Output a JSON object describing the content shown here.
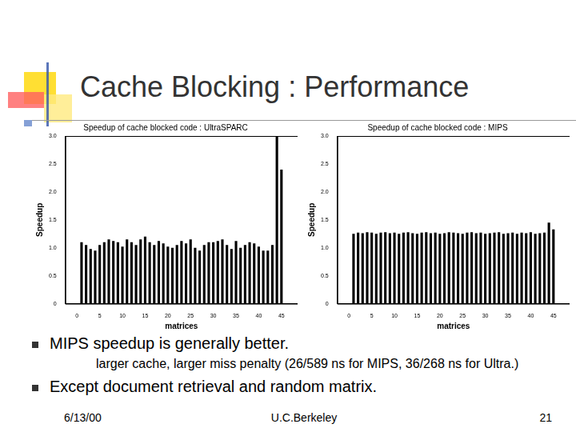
{
  "slide": {
    "title": "Cache Blocking : Performance",
    "bullets": [
      {
        "text": "MIPS speedup is generally better.",
        "sub": [
          "larger cache, larger miss penalty (26/589 ns for MIPS, 36/268 ns for Ultra.)"
        ]
      },
      {
        "text": "Except document retrieval and random matrix.",
        "sub": []
      }
    ],
    "footer": {
      "date": "6/13/00",
      "center": "U.C.Berkeley",
      "page": "21"
    }
  },
  "chart_data": [
    {
      "type": "bar",
      "title": "Speedup of cache blocked code : UltraSPARC",
      "x_label": "matrices",
      "y_label": "Speedup",
      "x": [
        1,
        2,
        3,
        4,
        5,
        6,
        7,
        8,
        9,
        10,
        11,
        12,
        13,
        14,
        15,
        16,
        17,
        18,
        19,
        20,
        21,
        22,
        23,
        24,
        25,
        26,
        27,
        28,
        29,
        30,
        31,
        32,
        33,
        34,
        35,
        36,
        37,
        38,
        39,
        40,
        41,
        42,
        43,
        44,
        45
      ],
      "values": [
        1.1,
        1.05,
        0.98,
        0.95,
        1.05,
        1.1,
        1.15,
        1.12,
        1.1,
        1.02,
        1.15,
        1.1,
        1.05,
        1.15,
        1.2,
        1.1,
        1.05,
        1.12,
        1.08,
        1.02,
        1.0,
        1.05,
        1.12,
        1.08,
        1.15,
        1.0,
        0.95,
        1.05,
        1.1,
        1.1,
        1.12,
        1.15,
        1.05,
        0.98,
        1.12,
        1.0,
        1.05,
        1.1,
        1.08,
        1.02,
        0.95,
        0.95,
        1.05,
        3.0,
        2.4
      ],
      "color": "#000000",
      "xlim": [
        0,
        46
      ],
      "xticks": [
        0,
        5,
        10,
        15,
        20,
        25,
        30,
        35,
        40,
        45
      ],
      "ylim": [
        0,
        3
      ],
      "yticks": [
        0,
        0.5,
        1,
        1.5,
        2,
        2.5,
        3
      ],
      "grid": false
    },
    {
      "type": "bar",
      "title": "Speedup of cache blocked code : MIPS",
      "x_label": "matrices",
      "y_label": "Speedup",
      "x": [
        1,
        2,
        3,
        4,
        5,
        6,
        7,
        8,
        9,
        10,
        11,
        12,
        13,
        14,
        15,
        16,
        17,
        18,
        19,
        20,
        21,
        22,
        23,
        24,
        25,
        26,
        27,
        28,
        29,
        30,
        31,
        32,
        33,
        34,
        35,
        36,
        37,
        38,
        39,
        40,
        41,
        42,
        43,
        44,
        45
      ],
      "values": [
        1.25,
        1.27,
        1.26,
        1.28,
        1.27,
        1.25,
        1.27,
        1.28,
        1.26,
        1.27,
        1.25,
        1.27,
        1.28,
        1.26,
        1.25,
        1.27,
        1.28,
        1.26,
        1.27,
        1.25,
        1.26,
        1.28,
        1.27,
        1.26,
        1.25,
        1.27,
        1.28,
        1.26,
        1.27,
        1.25,
        1.26,
        1.27,
        1.28,
        1.25,
        1.26,
        1.27,
        1.25,
        1.27,
        1.26,
        1.28,
        1.25,
        1.26,
        1.27,
        1.45,
        1.33
      ],
      "color": "#000000",
      "xlim": [
        0,
        46
      ],
      "xticks": [
        0,
        5,
        10,
        15,
        20,
        25,
        30,
        35,
        40,
        45
      ],
      "ylim": [
        0,
        3
      ],
      "yticks": [
        0,
        0.5,
        1,
        1.5,
        2,
        2.5,
        3
      ],
      "grid": false
    }
  ]
}
